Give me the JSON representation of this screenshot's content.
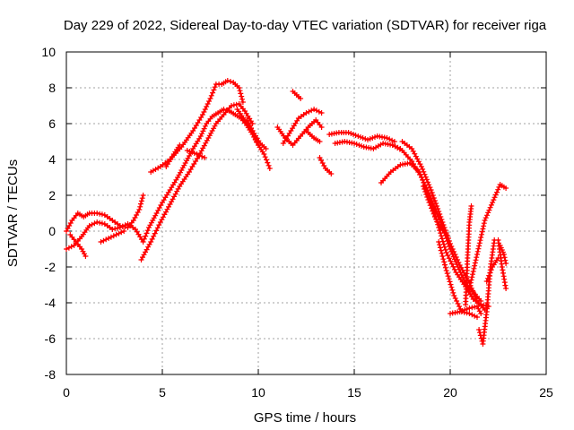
{
  "chart_data": {
    "type": "scatter",
    "title": "Day 229 of 2022, Sidereal Day-to-day VTEC variation (SDTVAR) for receiver riga",
    "xlabel": "GPS time / hours",
    "ylabel": "SDTVAR / TECUs",
    "xlim": [
      0,
      25
    ],
    "ylim": [
      -8,
      10
    ],
    "xticks": [
      "0",
      "5",
      "10",
      "15",
      "20",
      "25"
    ],
    "yticks": [
      "-8",
      "-6",
      "-4",
      "-2",
      "0",
      "2",
      "4",
      "6",
      "8",
      "10"
    ],
    "grid": true,
    "marker": "+",
    "color": "#ff0000",
    "series": [
      {
        "x": [
          0.0,
          0.3,
          0.6,
          0.9,
          1.2,
          1.6,
          2.0,
          2.4,
          2.8,
          3.2,
          3.5,
          3.8,
          4.0
        ],
        "y": [
          0.0,
          0.6,
          1.0,
          0.8,
          1.0,
          1.0,
          0.9,
          0.6,
          0.3,
          0.2,
          0.6,
          1.2,
          2.0
        ]
      },
      {
        "x": [
          0.0,
          0.4,
          0.8,
          1.2,
          1.6,
          2.0,
          2.4,
          2.8,
          3.2,
          3.6,
          4.0,
          4.3,
          4.7,
          5.0,
          5.4,
          5.8,
          6.2,
          6.6,
          7.0,
          7.3,
          7.6,
          7.9,
          8.2,
          8.5,
          8.8,
          9.1,
          9.4,
          9.7,
          10.0
        ],
        "y": [
          -1.0,
          -0.8,
          -0.3,
          0.3,
          0.5,
          0.4,
          0.1,
          0.2,
          0.4,
          0.1,
          -0.6,
          0.2,
          1.0,
          1.6,
          2.3,
          3.0,
          3.8,
          4.6,
          5.3,
          6.0,
          6.4,
          6.6,
          6.8,
          6.7,
          6.5,
          6.3,
          5.9,
          5.4,
          4.8
        ]
      },
      {
        "x": [
          0.2,
          0.5,
          0.8,
          1.0
        ],
        "y": [
          -0.2,
          -0.6,
          -1.0,
          -1.4
        ]
      },
      {
        "x": [
          1.8,
          2.2,
          2.6,
          3.0
        ],
        "y": [
          -0.6,
          -0.4,
          -0.2,
          0.0
        ]
      },
      {
        "x": [
          3.9,
          4.4,
          4.9,
          5.4,
          5.9,
          6.4,
          6.9,
          7.4,
          7.8,
          8.2,
          8.6,
          9.0,
          9.3,
          9.7
        ],
        "y": [
          -1.6,
          -0.6,
          0.5,
          1.5,
          2.5,
          3.3,
          4.2,
          5.2,
          6.0,
          6.5,
          7.0,
          7.1,
          6.7,
          6.0
        ]
      },
      {
        "x": [
          4.4,
          4.9,
          5.4,
          6.0,
          6.6,
          7.1,
          7.5,
          7.8,
          8.1,
          8.4,
          8.7,
          9.0,
          9.2
        ],
        "y": [
          3.3,
          3.6,
          4.0,
          4.7,
          5.6,
          6.5,
          7.4,
          8.2,
          8.2,
          8.4,
          8.3,
          8.0,
          7.2
        ]
      },
      {
        "x": [
          5.2,
          5.6,
          5.9
        ],
        "y": [
          3.6,
          4.3,
          4.8
        ]
      },
      {
        "x": [
          6.3,
          6.8,
          7.2
        ],
        "y": [
          4.5,
          4.3,
          4.1
        ]
      },
      {
        "x": [
          8.9,
          9.3,
          9.7,
          10.1,
          10.4
        ],
        "y": [
          6.8,
          6.2,
          5.6,
          4.9,
          4.6
        ]
      },
      {
        "x": [
          9.4,
          9.7,
          9.9
        ],
        "y": [
          6.2,
          5.6,
          5.0
        ]
      },
      {
        "x": [
          10.0,
          10.3,
          10.6
        ],
        "y": [
          4.8,
          4.3,
          3.5
        ]
      },
      {
        "x": [
          11.0,
          11.4,
          11.8,
          12.2,
          12.6,
          13.0,
          13.3
        ],
        "y": [
          5.8,
          5.2,
          4.8,
          5.3,
          5.8,
          6.2,
          5.8
        ]
      },
      {
        "x": [
          11.3,
          11.7,
          12.1,
          12.5,
          12.9,
          13.3
        ],
        "y": [
          4.9,
          5.6,
          6.3,
          6.6,
          6.8,
          6.6
        ]
      },
      {
        "x": [
          11.8,
          12.0,
          12.2
        ],
        "y": [
          7.8,
          7.6,
          7.4
        ]
      },
      {
        "x": [
          12.5,
          12.9,
          13.2
        ],
        "y": [
          5.6,
          5.2,
          5.0
        ]
      },
      {
        "x": [
          13.2,
          13.5,
          13.8
        ],
        "y": [
          4.1,
          3.5,
          3.2
        ]
      },
      {
        "x": [
          13.7,
          14.2,
          14.7,
          15.2,
          15.7,
          16.2,
          16.7,
          17.1
        ],
        "y": [
          5.4,
          5.5,
          5.5,
          5.3,
          5.1,
          5.3,
          5.2,
          5.0
        ]
      },
      {
        "x": [
          14.0,
          14.5,
          15.0,
          15.5,
          16.0,
          16.5,
          17.0,
          17.4
        ],
        "y": [
          4.9,
          5.0,
          4.9,
          4.7,
          4.6,
          4.9,
          4.8,
          4.6
        ]
      },
      {
        "x": [
          16.4,
          16.9,
          17.4,
          17.9,
          18.4,
          18.9,
          19.4,
          19.8,
          20.3,
          20.8,
          21.2,
          21.6,
          22.0
        ],
        "y": [
          2.7,
          3.3,
          3.7,
          3.8,
          3.3,
          2.0,
          0.2,
          -1.2,
          -2.3,
          -3.1,
          -3.8,
          -4.1,
          -4.2
        ]
      },
      {
        "x": [
          17.0,
          17.5,
          18.0,
          18.5,
          19.0,
          19.5,
          20.0,
          20.4,
          20.8,
          21.2,
          21.6
        ],
        "y": [
          4.8,
          4.5,
          3.9,
          3.0,
          1.8,
          0.5,
          -1.0,
          -2.0,
          -2.9,
          -3.4,
          -3.9
        ]
      },
      {
        "x": [
          17.5,
          18.0,
          18.5,
          19.0,
          19.5,
          20.0,
          20.5,
          21.0,
          21.4,
          21.8
        ],
        "y": [
          5.0,
          4.6,
          3.6,
          2.3,
          0.8,
          -0.7,
          -1.9,
          -2.9,
          -3.9,
          -4.4
        ]
      },
      {
        "x": [
          18.6,
          18.9,
          19.2,
          19.5,
          19.8
        ],
        "y": [
          2.5,
          1.6,
          0.8,
          0.2,
          -0.2
        ]
      },
      {
        "x": [
          19.4,
          19.8,
          20.2,
          20.6,
          21.0,
          21.4
        ],
        "y": [
          -0.6,
          -2.2,
          -3.6,
          -4.5,
          -4.6,
          -4.8
        ]
      },
      {
        "x": [
          20.0,
          20.5,
          21.0,
          21.4,
          21.6
        ],
        "y": [
          -4.6,
          -4.5,
          -4.3,
          -4.2,
          -4.6
        ]
      },
      {
        "x": [
          20.8,
          20.9,
          21.0,
          21.1
        ],
        "y": [
          -4.1,
          -1.5,
          0.5,
          1.4
        ]
      },
      {
        "x": [
          21.0,
          21.4,
          21.8,
          22.2,
          22.6,
          22.9
        ],
        "y": [
          -3.2,
          -1.3,
          0.6,
          1.6,
          2.6,
          2.4
        ]
      },
      {
        "x": [
          21.5,
          21.7,
          21.9,
          22.1,
          22.3
        ],
        "y": [
          -5.5,
          -6.3,
          -4.5,
          -2.0,
          -0.5
        ]
      },
      {
        "x": [
          21.9,
          22.2,
          22.5
        ],
        "y": [
          -2.8,
          -2.0,
          -1.5
        ]
      },
      {
        "x": [
          22.5,
          22.7,
          22.9
        ],
        "y": [
          -0.5,
          -2.0,
          -3.2
        ]
      },
      {
        "x": [
          22.6,
          22.8,
          22.9
        ],
        "y": [
          -0.8,
          -1.3,
          -1.8
        ]
      }
    ]
  }
}
